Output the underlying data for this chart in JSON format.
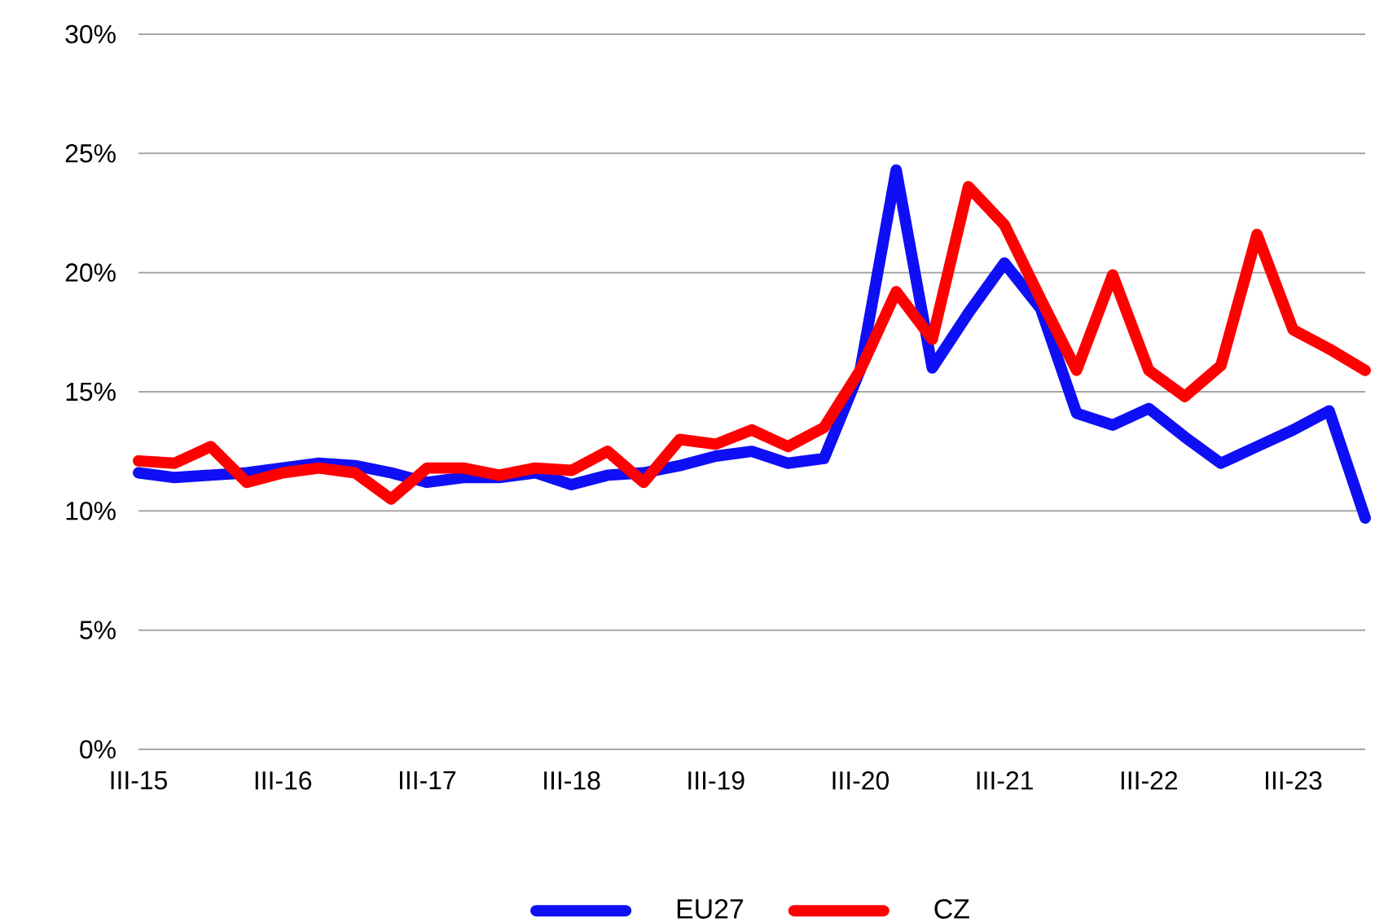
{
  "chart_data": {
    "type": "line",
    "categories": [
      "III-15",
      null,
      null,
      null,
      "III-16",
      null,
      null,
      null,
      "III-17",
      null,
      null,
      null,
      "III-18",
      null,
      null,
      null,
      "III-19",
      null,
      null,
      null,
      "III-20",
      null,
      null,
      null,
      "III-21",
      null,
      null,
      null,
      "III-22",
      null,
      null,
      null,
      "III-23",
      null,
      null
    ],
    "series": [
      {
        "name": "EU27",
        "color": "#0f0ff5",
        "values": [
          11.6,
          11.4,
          11.5,
          11.6,
          11.8,
          12.0,
          11.9,
          11.6,
          11.2,
          11.4,
          11.4,
          11.6,
          11.1,
          11.5,
          11.6,
          11.9,
          12.3,
          12.5,
          12.0,
          12.2,
          15.9,
          24.3,
          16.0,
          18.3,
          20.4,
          18.5,
          14.1,
          13.6,
          14.3,
          13.1,
          12.0,
          12.7,
          13.4,
          14.2,
          9.7
        ]
      },
      {
        "name": "CZ",
        "color": "#ff0000",
        "values": [
          12.1,
          12.0,
          12.7,
          11.2,
          11.6,
          11.8,
          11.6,
          10.5,
          11.8,
          11.8,
          11.5,
          11.8,
          11.7,
          12.5,
          11.2,
          13.0,
          12.8,
          13.4,
          12.7,
          13.5,
          15.9,
          19.2,
          17.2,
          23.6,
          22.0,
          18.9,
          15.9,
          19.9,
          15.9,
          14.8,
          16.1,
          21.6,
          17.6,
          16.8,
          15.9
        ]
      }
    ],
    "ylim": [
      0,
      30
    ],
    "yticks": [
      {
        "value": 0,
        "label": "0%"
      },
      {
        "value": 5,
        "label": "5%"
      },
      {
        "value": 10,
        "label": "10%"
      },
      {
        "value": 15,
        "label": "15%"
      },
      {
        "value": 20,
        "label": "20%"
      },
      {
        "value": 25,
        "label": "25%"
      },
      {
        "value": 30,
        "label": "30%"
      }
    ],
    "grid": "y",
    "legend": "bottom",
    "marker": "none",
    "line_style": "solid"
  }
}
